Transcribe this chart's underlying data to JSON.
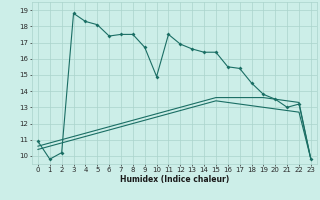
{
  "xlabel": "Humidex (Indice chaleur)",
  "ylabel": "",
  "bg_color": "#cceee8",
  "grid_color": "#aad4cc",
  "line_color": "#1a6e64",
  "xlim": [
    -0.5,
    23.5
  ],
  "ylim": [
    9.5,
    19.5
  ],
  "xticks": [
    0,
    1,
    2,
    3,
    4,
    5,
    6,
    7,
    8,
    9,
    10,
    11,
    12,
    13,
    14,
    15,
    16,
    17,
    18,
    19,
    20,
    21,
    22,
    23
  ],
  "yticks": [
    10,
    11,
    12,
    13,
    14,
    15,
    16,
    17,
    18,
    19
  ],
  "series1_x": [
    0,
    1,
    2,
    3,
    4,
    5,
    6,
    7,
    8,
    9,
    10,
    11,
    12,
    13,
    14,
    15,
    16,
    17,
    18,
    19,
    20,
    21,
    22,
    23
  ],
  "series1_y": [
    10.9,
    9.8,
    10.2,
    18.8,
    18.3,
    18.1,
    17.4,
    17.5,
    17.5,
    16.7,
    14.9,
    17.5,
    16.9,
    16.6,
    16.4,
    16.4,
    15.5,
    15.4,
    14.5,
    13.8,
    13.5,
    13.0,
    13.2,
    9.8
  ],
  "series2_x": [
    0,
    1,
    2,
    3,
    4,
    5,
    6,
    7,
    8,
    9,
    10,
    11,
    12,
    13,
    14,
    15,
    16,
    17,
    18,
    19,
    20,
    21,
    22,
    23
  ],
  "series2_y": [
    10.6,
    10.8,
    11.0,
    11.2,
    11.4,
    11.6,
    11.8,
    12.0,
    12.2,
    12.4,
    12.6,
    12.8,
    13.0,
    13.2,
    13.4,
    13.6,
    13.6,
    13.6,
    13.6,
    13.6,
    13.5,
    13.4,
    13.3,
    9.8
  ],
  "series3_x": [
    0,
    1,
    2,
    3,
    4,
    5,
    6,
    7,
    8,
    9,
    10,
    11,
    12,
    13,
    14,
    15,
    16,
    17,
    18,
    19,
    20,
    21,
    22,
    23
  ],
  "series3_y": [
    10.4,
    10.6,
    10.8,
    11.0,
    11.2,
    11.4,
    11.6,
    11.8,
    12.0,
    12.2,
    12.4,
    12.6,
    12.8,
    13.0,
    13.2,
    13.4,
    13.3,
    13.2,
    13.1,
    13.0,
    12.9,
    12.8,
    12.7,
    9.8
  ]
}
